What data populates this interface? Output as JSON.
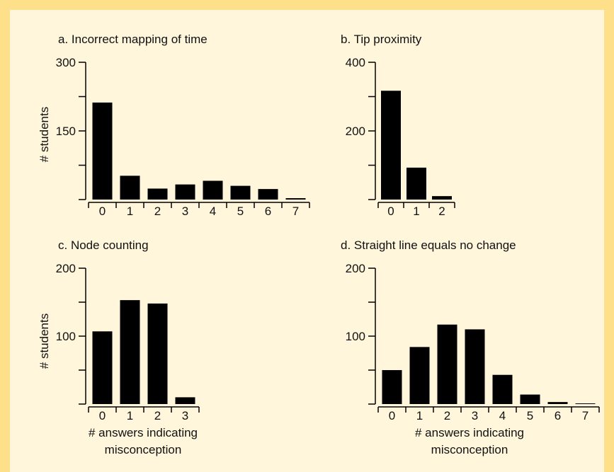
{
  "figure": {
    "shared_ylabel": "# students",
    "xlabel_line1": "# answers indicating",
    "xlabel_line2": "misconception",
    "colors": {
      "background": "#ffe08a",
      "panel": "#fff6dc",
      "bar": "#000000",
      "axis": "#000000"
    }
  },
  "chart_data": [
    {
      "type": "bar",
      "title": "a. Incorrect mapping of time",
      "ylabel": "# students",
      "xlabel": "",
      "categories": [
        "0",
        "1",
        "2",
        "3",
        "4",
        "5",
        "6",
        "7"
      ],
      "values": [
        212,
        52,
        24,
        33,
        41,
        30,
        23,
        3
      ],
      "ylim": [
        0,
        300
      ],
      "yticks": [
        0,
        150,
        300
      ],
      "ytick_labels": [
        "",
        "150",
        "300"
      ]
    },
    {
      "type": "bar",
      "title": "b. Tip proximity",
      "ylabel": "",
      "xlabel": "",
      "categories": [
        "0",
        "1",
        "2"
      ],
      "values": [
        317,
        93,
        10
      ],
      "ylim": [
        0,
        400
      ],
      "yticks": [
        0,
        200,
        400
      ],
      "ytick_labels": [
        "",
        "200",
        "400"
      ]
    },
    {
      "type": "bar",
      "title": "c. Node counting",
      "ylabel": "# students",
      "xlabel": "# answers indicating misconception",
      "categories": [
        "0",
        "1",
        "2",
        "3"
      ],
      "values": [
        107,
        153,
        148,
        10
      ],
      "ylim": [
        0,
        200
      ],
      "yticks": [
        0,
        100,
        200
      ],
      "ytick_labels": [
        "",
        "100",
        "200"
      ]
    },
    {
      "type": "bar",
      "title": "d. Straight line equals no change",
      "ylabel": "",
      "xlabel": "# answers indicating misconception",
      "categories": [
        "0",
        "1",
        "2",
        "3",
        "4",
        "5",
        "6",
        "7"
      ],
      "values": [
        50,
        84,
        117,
        110,
        43,
        14,
        3,
        1
      ],
      "ylim": [
        0,
        200
      ],
      "yticks": [
        0,
        100,
        200
      ],
      "ytick_labels": [
        "",
        "100",
        "200"
      ]
    }
  ]
}
